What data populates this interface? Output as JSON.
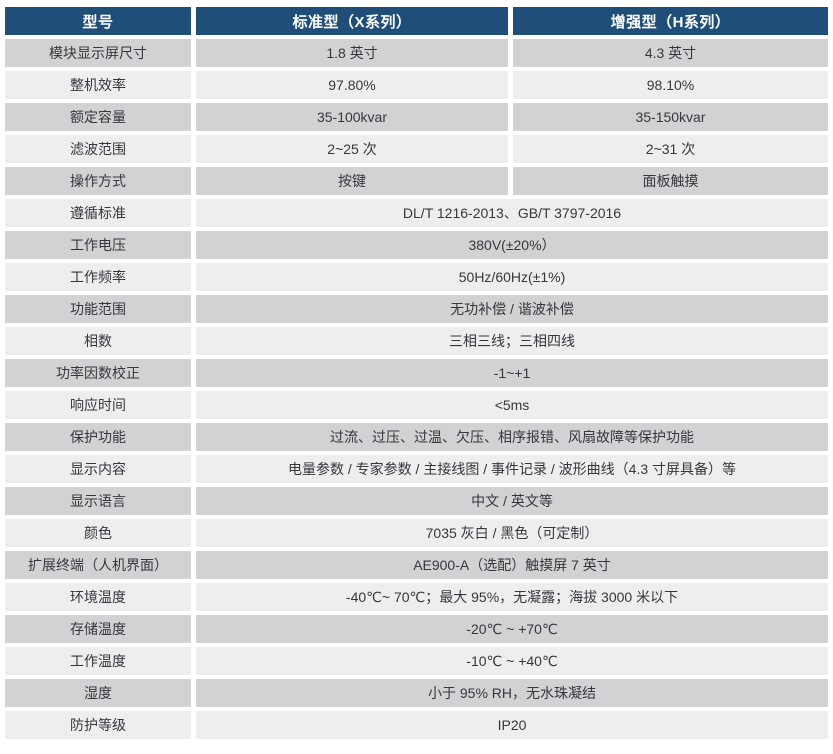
{
  "table": {
    "colors": {
      "header_bg": "#1f4e79",
      "header_text": "#ffffff",
      "row_dark": "#d2d2d4",
      "row_light": "#eeeeef",
      "cell_text": "#35373c"
    },
    "header": {
      "cols": [
        "型号",
        "标准型（X系列）",
        "增强型（H系列）"
      ]
    },
    "rows": [
      {
        "label": "模块显示屏尺寸",
        "values": [
          "1.8 英寸",
          "4.3 英寸"
        ]
      },
      {
        "label": "整机效率",
        "values": [
          "97.80%",
          "98.10%"
        ]
      },
      {
        "label": "额定容量",
        "values": [
          "35-100kvar",
          "35-150kvar"
        ]
      },
      {
        "label": "滤波范围",
        "values": [
          "2~25 次",
          "2~31 次"
        ]
      },
      {
        "label": "操作方式",
        "values": [
          "按键",
          "面板触摸"
        ]
      },
      {
        "label": "遵循标准",
        "values": [
          "DL/T 1216-2013、GB/T 3797-2016"
        ]
      },
      {
        "label": "工作电压",
        "values": [
          "380V(±20%）"
        ]
      },
      {
        "label": "工作频率",
        "values": [
          "50Hz/60Hz(±1%)"
        ]
      },
      {
        "label": "功能范围",
        "values": [
          "无功补偿 / 谐波补偿"
        ]
      },
      {
        "label": "相数",
        "values": [
          "三相三线；三相四线"
        ]
      },
      {
        "label": "功率因数校正",
        "values": [
          "-1~+1"
        ]
      },
      {
        "label": "响应时间",
        "values": [
          "<5ms"
        ]
      },
      {
        "label": "保护功能",
        "values": [
          "过流、过压、过温、欠压、相序报错、风扇故障等保护功能"
        ]
      },
      {
        "label": "显示内容",
        "values": [
          "电量参数 / 专家参数 / 主接线图 / 事件记录 / 波形曲线（4.3 寸屏具备）等"
        ]
      },
      {
        "label": "显示语言",
        "values": [
          "中文 / 英文等"
        ]
      },
      {
        "label": "颜色",
        "values": [
          "7035 灰白 / 黑色（可定制）"
        ]
      },
      {
        "label": "扩展终端（人机界面）",
        "values": [
          "AE900-A（选配）触摸屏 7 英寸"
        ]
      },
      {
        "label": "环境温度",
        "values": [
          "-40℃~ 70℃；最大 95%，无凝露；海拔 3000 米以下"
        ]
      },
      {
        "label": "存储温度",
        "values": [
          "-20℃ ~ +70℃"
        ]
      },
      {
        "label": "工作温度",
        "values": [
          "-10℃ ~ +40℃"
        ]
      },
      {
        "label": "湿度",
        "values": [
          "小于 95% RH，无水珠凝结"
        ]
      },
      {
        "label": "防护等级",
        "values": [
          "IP20"
        ]
      }
    ]
  }
}
